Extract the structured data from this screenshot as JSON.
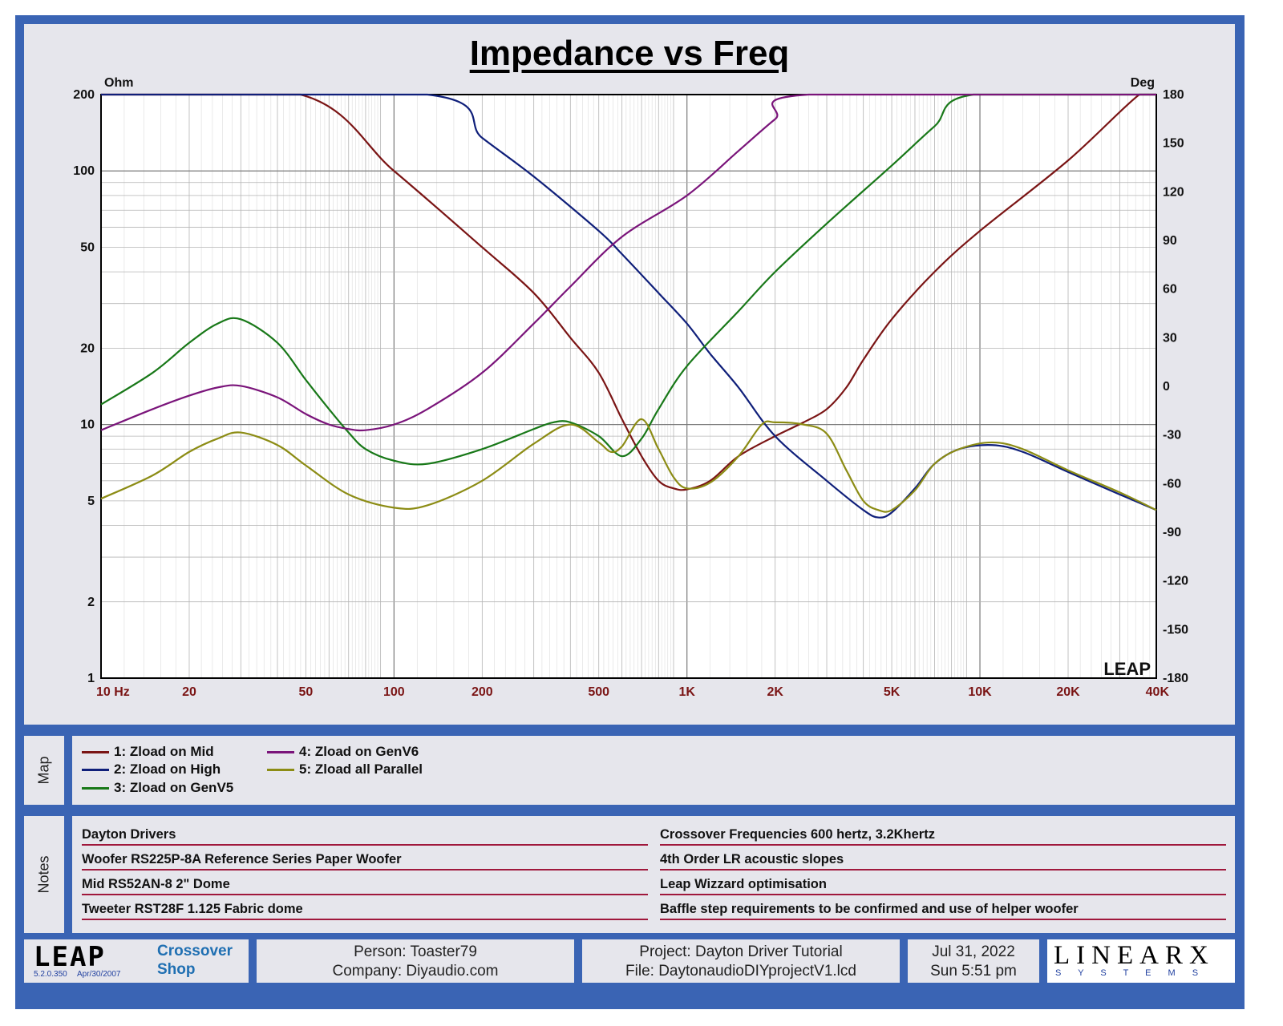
{
  "title": "Impedance vs Freq",
  "chart_data": {
    "type": "line",
    "title": "Impedance vs Freq",
    "x_scale": "log",
    "y_scale": "log",
    "xlim": [
      10,
      40000
    ],
    "ylim": [
      1,
      200
    ],
    "y2lim": [
      -180,
      180
    ],
    "ylabel": "Ohm",
    "y2label": "Deg",
    "grid": true,
    "x_ticks": [
      {
        "v": 10,
        "label": "10  Hz"
      },
      {
        "v": 20,
        "label": "20"
      },
      {
        "v": 50,
        "label": "50"
      },
      {
        "v": 100,
        "label": "100"
      },
      {
        "v": 200,
        "label": "200"
      },
      {
        "v": 500,
        "label": "500"
      },
      {
        "v": 1000,
        "label": "1K"
      },
      {
        "v": 2000,
        "label": "2K"
      },
      {
        "v": 5000,
        "label": "5K"
      },
      {
        "v": 10000,
        "label": "10K"
      },
      {
        "v": 20000,
        "label": "20K"
      },
      {
        "v": 40000,
        "label": "40K"
      }
    ],
    "y_ticks": [
      {
        "v": 200,
        "label": "200"
      },
      {
        "v": 100,
        "label": "100"
      },
      {
        "v": 50,
        "label": "50"
      },
      {
        "v": 20,
        "label": "20"
      },
      {
        "v": 10,
        "label": "10"
      },
      {
        "v": 5,
        "label": "5"
      },
      {
        "v": 2,
        "label": "2"
      },
      {
        "v": 1,
        "label": "1"
      }
    ],
    "y2_ticks": [
      "180",
      "150",
      "120",
      "90",
      "60",
      "30",
      "0",
      "-30",
      "-60",
      "-90",
      "-120",
      "-150",
      "-180"
    ],
    "series": [
      {
        "name": "1: Zload on Mid",
        "color": "#7a1414",
        "points": [
          [
            48,
            200
          ],
          [
            100,
            100
          ],
          [
            200,
            50
          ],
          [
            300,
            33
          ],
          [
            400,
            22
          ],
          [
            500,
            16
          ],
          [
            600,
            10.5
          ],
          [
            700,
            7.5
          ],
          [
            800,
            6
          ],
          [
            900,
            5.6
          ],
          [
            1000,
            5.55
          ],
          [
            1200,
            6
          ],
          [
            1500,
            7.5
          ],
          [
            2000,
            9
          ],
          [
            2500,
            10.2
          ],
          [
            3000,
            11.5
          ],
          [
            3500,
            14
          ],
          [
            4000,
            18
          ],
          [
            5000,
            26
          ],
          [
            7000,
            40
          ],
          [
            10000,
            58
          ],
          [
            20000,
            110
          ],
          [
            35000,
            200
          ]
        ]
      },
      {
        "name": "2: Zload on High",
        "color": "#0f1f7a",
        "points": [
          [
            130,
            200
          ],
          [
            200,
            135
          ],
          [
            300,
            95
          ],
          [
            500,
            58
          ],
          [
            600,
            47
          ],
          [
            800,
            33
          ],
          [
            1000,
            25
          ],
          [
            1200,
            19
          ],
          [
            1500,
            14
          ],
          [
            2000,
            9
          ],
          [
            3000,
            6
          ],
          [
            4000,
            4.6
          ],
          [
            4500,
            4.3
          ],
          [
            5000,
            4.5
          ],
          [
            6000,
            5.6
          ],
          [
            7000,
            7
          ],
          [
            8500,
            8
          ],
          [
            11000,
            8.3
          ],
          [
            14000,
            7.8
          ],
          [
            20000,
            6.5
          ],
          [
            30000,
            5.3
          ],
          [
            40000,
            4.6
          ]
        ]
      },
      {
        "name": "3: Zload on GenV5",
        "color": "#187818",
        "points": [
          [
            10,
            12
          ],
          [
            15,
            16
          ],
          [
            20,
            21
          ],
          [
            25,
            25
          ],
          [
            30,
            26
          ],
          [
            40,
            21
          ],
          [
            50,
            15
          ],
          [
            60,
            11.5
          ],
          [
            70,
            9.3
          ],
          [
            80,
            8
          ],
          [
            100,
            7.2
          ],
          [
            130,
            7
          ],
          [
            200,
            8
          ],
          [
            300,
            9.6
          ],
          [
            350,
            10.2
          ],
          [
            400,
            10.2
          ],
          [
            500,
            9
          ],
          [
            600,
            7.5
          ],
          [
            700,
            8.8
          ],
          [
            800,
            11.5
          ],
          [
            1000,
            17
          ],
          [
            1500,
            28
          ],
          [
            2000,
            40
          ],
          [
            3000,
            62
          ],
          [
            5000,
            105
          ],
          [
            7000,
            150
          ],
          [
            9500,
            200
          ]
        ]
      },
      {
        "name": "4: Zload on GenV6",
        "color": "#7a147a",
        "points": [
          [
            10,
            9.5
          ],
          [
            15,
            11.5
          ],
          [
            20,
            13
          ],
          [
            25,
            14
          ],
          [
            30,
            14.2
          ],
          [
            40,
            12.8
          ],
          [
            50,
            11
          ],
          [
            60,
            10
          ],
          [
            70,
            9.6
          ],
          [
            80,
            9.5
          ],
          [
            100,
            10
          ],
          [
            130,
            11.5
          ],
          [
            200,
            16
          ],
          [
            300,
            25
          ],
          [
            400,
            35
          ],
          [
            600,
            55
          ],
          [
            1000,
            80
          ],
          [
            1500,
            120
          ],
          [
            2000,
            160
          ],
          [
            2600,
            200
          ]
        ]
      },
      {
        "name": "5: Zload all Parallel",
        "color": "#8c8c14",
        "points": [
          [
            10,
            5.1
          ],
          [
            15,
            6.3
          ],
          [
            20,
            7.8
          ],
          [
            25,
            8.8
          ],
          [
            30,
            9.3
          ],
          [
            40,
            8.3
          ],
          [
            50,
            6.9
          ],
          [
            70,
            5.3
          ],
          [
            100,
            4.7
          ],
          [
            130,
            4.8
          ],
          [
            200,
            6
          ],
          [
            300,
            8.4
          ],
          [
            400,
            10
          ],
          [
            500,
            8.5
          ],
          [
            550,
            7.8
          ],
          [
            600,
            8.2
          ],
          [
            700,
            10.5
          ],
          [
            800,
            8
          ],
          [
            900,
            6.2
          ],
          [
            1000,
            5.6
          ],
          [
            1200,
            5.9
          ],
          [
            1500,
            7.5
          ],
          [
            1800,
            10
          ],
          [
            2000,
            10.2
          ],
          [
            2500,
            10
          ],
          [
            3000,
            9.2
          ],
          [
            3500,
            6.6
          ],
          [
            4000,
            5
          ],
          [
            4500,
            4.6
          ],
          [
            5000,
            4.6
          ],
          [
            6000,
            5.5
          ],
          [
            7000,
            7
          ],
          [
            8500,
            8
          ],
          [
            11000,
            8.5
          ],
          [
            14000,
            8
          ],
          [
            20000,
            6.6
          ],
          [
            30000,
            5.4
          ],
          [
            40000,
            4.6
          ]
        ]
      }
    ]
  },
  "watermark": "LEAP",
  "legend": {
    "label": "Map",
    "items": [
      {
        "label": "1: Zload on Mid",
        "color": "#7a1414"
      },
      {
        "label": "2: Zload on High",
        "color": "#0f1f7a"
      },
      {
        "label": "3: Zload on GenV5",
        "color": "#187818"
      },
      {
        "label": "4: Zload on GenV6",
        "color": "#7a147a"
      },
      {
        "label": "5: Zload all Parallel",
        "color": "#8c8c14"
      }
    ]
  },
  "notes": {
    "label": "Notes",
    "left": [
      "Dayton Drivers",
      "Woofer RS225P-8A Reference Series Paper Woofer",
      "Mid RS52AN-8 2\" Dome",
      "Tweeter RST28F 1.125 Fabric dome"
    ],
    "right": [
      "Crossover Frequencies 600 hertz, 3.2Khertz",
      "4th Order LR acoustic slopes",
      "Leap Wizzard optimisation",
      "Baffle step requirements to be confirmed and use of helper woofer"
    ]
  },
  "footer": {
    "logo": "LEAP",
    "version": "5.2.0.350",
    "version_date": "Apr/30/2007",
    "app_line1": "Crossover",
    "app_line2": "Shop",
    "person": "Person: Toaster79",
    "company": "Company: Diyaudio.com",
    "project": "Project: Dayton Driver Tutorial",
    "file": "File: DaytonaudioDIYprojectV1.lcd",
    "date": "Jul 31, 2022",
    "time": "Sun  5:51 pm",
    "brand": "LINEARX",
    "brand_sub": "S Y S T E M S"
  },
  "colors": {
    "frame": "#3a64b4",
    "panel": "#e6e6ec",
    "axis_label": "#7a1414",
    "note_underline": "#a0183c"
  }
}
